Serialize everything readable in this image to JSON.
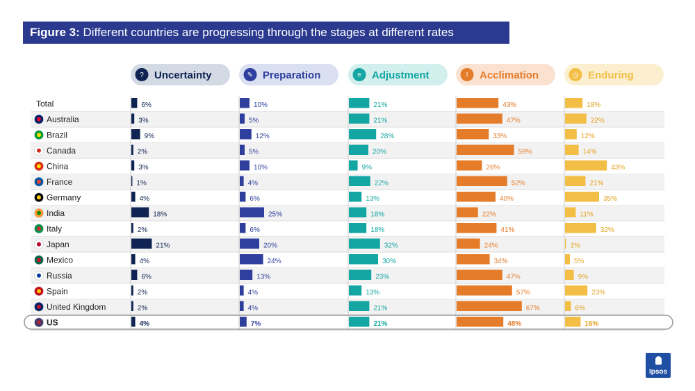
{
  "title": {
    "figure": "Figure 3:",
    "text": "Different countries are progressing through the stages at different rates"
  },
  "brand": {
    "logo": "Ipsos"
  },
  "chart_data": {
    "type": "bar",
    "orientation": "horizontal",
    "categories": [
      "Total",
      "Australia",
      "Brazil",
      "Canada",
      "China",
      "France",
      "Germany",
      "India",
      "Italy",
      "Japan",
      "Mexico",
      "Russia",
      "Spain",
      "United Kingdom",
      "US"
    ],
    "highlight": "US",
    "series": [
      {
        "name": "Uncertainty",
        "color": "#0f2452",
        "pill": "#d4dae4",
        "icon": "question-icon",
        "values": [
          6,
          3,
          9,
          2,
          3,
          1,
          4,
          18,
          2,
          21,
          4,
          6,
          2,
          2,
          4
        ]
      },
      {
        "name": "Preparation",
        "color": "#2e3f9e",
        "pill": "#dadff2",
        "icon": "edit-icon",
        "values": [
          10,
          5,
          12,
          5,
          10,
          4,
          6,
          25,
          6,
          20,
          24,
          13,
          4,
          4,
          7
        ]
      },
      {
        "name": "Adjustment",
        "color": "#14a6a2",
        "pill": "#d2eeed",
        "icon": "sliders-icon",
        "values": [
          21,
          21,
          28,
          20,
          9,
          22,
          13,
          18,
          18,
          32,
          30,
          23,
          13,
          21,
          21
        ]
      },
      {
        "name": "Acclimation",
        "color": "#e57c2a",
        "pill": "#fbe1d0",
        "icon": "alert-icon",
        "values": [
          43,
          47,
          33,
          59,
          26,
          52,
          40,
          22,
          41,
          24,
          34,
          47,
          57,
          67,
          48
        ]
      },
      {
        "name": "Enduring",
        "color": "#f3be45",
        "pill": "#fcefcf",
        "icon": "clock-icon",
        "values": [
          18,
          22,
          12,
          14,
          43,
          21,
          35,
          11,
          32,
          1,
          5,
          9,
          23,
          6,
          16
        ]
      }
    ],
    "value_suffix": "%",
    "label_colors": [
      "#0f2452",
      "#2e3f9e",
      "#14a6a2",
      "#e57c2a",
      "#e3a323"
    ],
    "flag_icons": [
      "",
      "australia-flag-icon",
      "brazil-flag-icon",
      "canada-flag-icon",
      "china-flag-icon",
      "france-flag-icon",
      "germany-flag-icon",
      "india-flag-icon",
      "italy-flag-icon",
      "japan-flag-icon",
      "mexico-flag-icon",
      "russia-flag-icon",
      "spain-flag-icon",
      "uk-flag-icon",
      "us-flag-icon"
    ]
  }
}
